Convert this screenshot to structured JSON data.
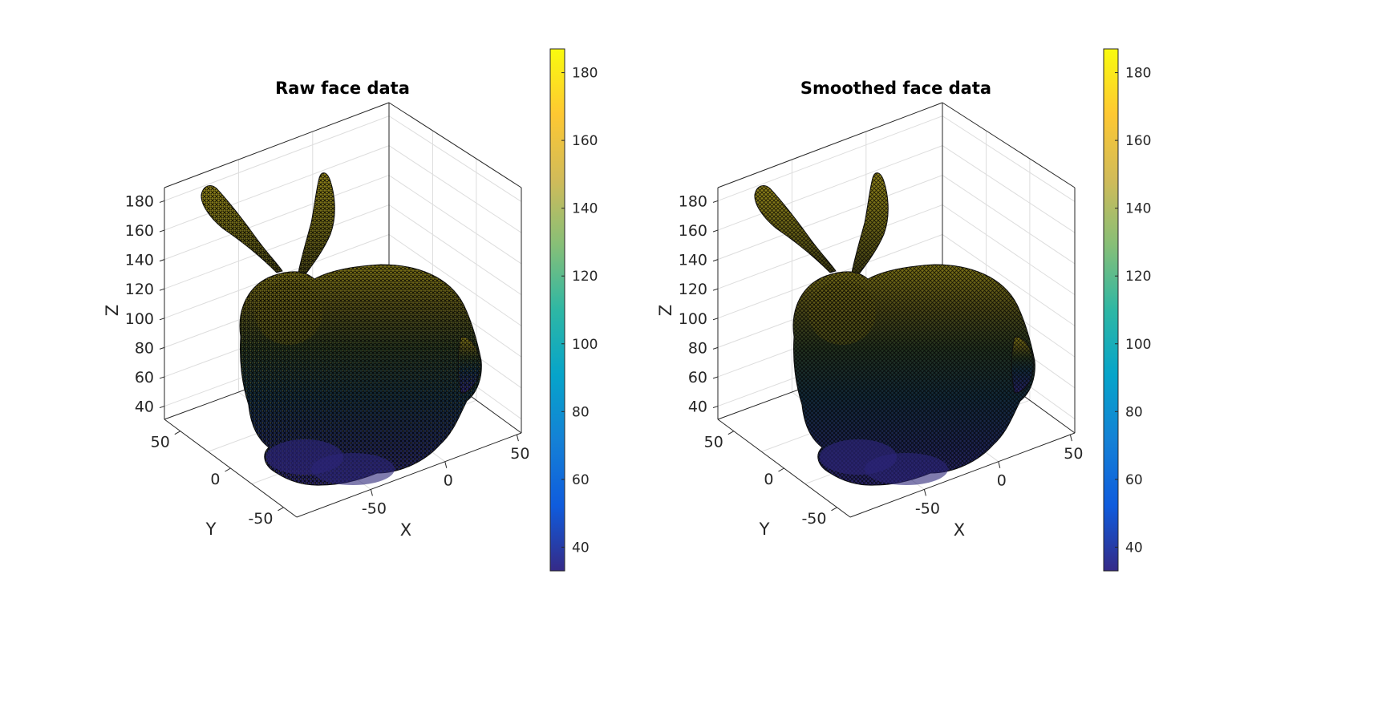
{
  "chart_data": [
    {
      "type": "surface-3d",
      "title": "Raw face data",
      "xlabel": "X",
      "ylabel": "Y",
      "zlabel": "Z",
      "xticks": [
        "-50",
        "0",
        "50"
      ],
      "yticks": [
        "-50",
        "0",
        "50"
      ],
      "zticks": [
        "40",
        "60",
        "80",
        "100",
        "120",
        "140",
        "160",
        "180"
      ],
      "colorbar": {
        "ticks": [
          "40",
          "60",
          "80",
          "100",
          "120",
          "140",
          "160",
          "180"
        ],
        "limits": [
          33,
          187
        ],
        "colormap": "parula"
      },
      "grid": true,
      "style": "speckled"
    },
    {
      "type": "surface-3d",
      "title": "Smoothed face data",
      "xlabel": "X",
      "ylabel": "Y",
      "zlabel": "Z",
      "xticks": [
        "-50",
        "0",
        "50"
      ],
      "yticks": [
        "-50",
        "0",
        "50"
      ],
      "zticks": [
        "40",
        "60",
        "80",
        "100",
        "120",
        "140",
        "160",
        "180"
      ],
      "colorbar": {
        "ticks": [
          "40",
          "60",
          "80",
          "100",
          "120",
          "140",
          "160",
          "180"
        ],
        "limits": [
          33,
          187
        ],
        "colormap": "parula"
      },
      "grid": true,
      "style": "smooth"
    }
  ],
  "colors": {
    "parula": [
      "#352a87",
      "#0f5cdd",
      "#1481d6",
      "#06a4ca",
      "#2eb7a4",
      "#87bf77",
      "#d1bb59",
      "#fec832",
      "#f9fb0e"
    ]
  }
}
